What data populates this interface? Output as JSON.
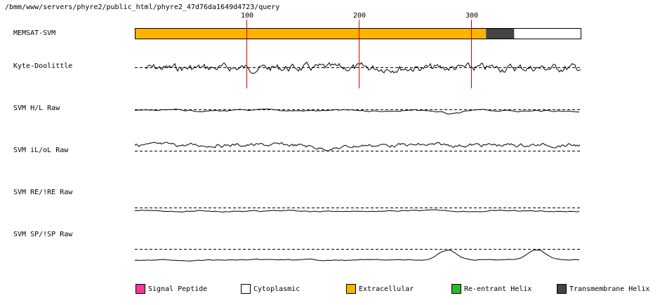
{
  "header": {
    "path": "/bmm/www/servers/phyre2/public_html/phyre2_47d76da1649d4723/query"
  },
  "ruler": {
    "ticks": [
      "100",
      "200",
      "300"
    ],
    "positions": [
      100,
      200,
      300
    ],
    "sequence_length": 397
  },
  "tracks": {
    "memsat": "MEMSAT-SVM",
    "kyte": "Kyte-Doolittle",
    "svm_hl": "SVM H/L Raw",
    "svm_ilol": "SVM iL/oL Raw",
    "svm_re": "SVM RE/!RE Raw",
    "svm_sp": "SVM SP/!SP Raw"
  },
  "memsat_segments": [
    {
      "type": "Extracellular",
      "start": 1,
      "end": 312
    },
    {
      "type": "Transmembrane Helix",
      "start": 313,
      "end": 337
    },
    {
      "type": "Cytoplasmic",
      "start": 338,
      "end": 397
    }
  ],
  "legend": [
    {
      "label": "Signal Peptide",
      "color": "#ff3399"
    },
    {
      "label": "Cytoplasmic",
      "color": "#ffffff"
    },
    {
      "label": "Extracellular",
      "color": "#ffb300"
    },
    {
      "label": "Re-entrant Helix",
      "color": "#2db82d"
    },
    {
      "label": "Transmembrane Helix",
      "color": "#444444"
    }
  ],
  "colors": {
    "marker": "#dd0000",
    "line": "#000000",
    "dashed": "#000000"
  }
}
